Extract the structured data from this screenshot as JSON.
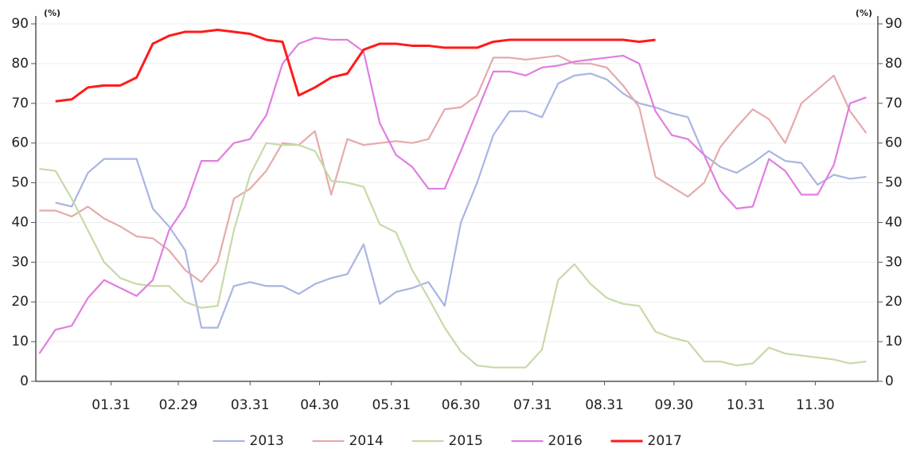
{
  "chart_data": {
    "type": "line",
    "y_unit": "(%)",
    "y2_unit": "(%)",
    "x": [
      0,
      7,
      14,
      21,
      28,
      35,
      42,
      49,
      56,
      63,
      70,
      77,
      84,
      91,
      98,
      105,
      112,
      119,
      126,
      133,
      140,
      147,
      154,
      161,
      168,
      175,
      182,
      189,
      196,
      203,
      210,
      217,
      224,
      231,
      238,
      245,
      252,
      259,
      266,
      273,
      280,
      287,
      294,
      301,
      308,
      315,
      322,
      329,
      336,
      343,
      350,
      357
    ],
    "xlim": [
      -1.5,
      362
    ],
    "xticks": [
      {
        "value": 31,
        "label": "01.31"
      },
      {
        "value": 60,
        "label": "02.29"
      },
      {
        "value": 91,
        "label": "03.31"
      },
      {
        "value": 121,
        "label": "04.30"
      },
      {
        "value": 152,
        "label": "05.31"
      },
      {
        "value": 182,
        "label": "06.30"
      },
      {
        "value": 213,
        "label": "07.31"
      },
      {
        "value": 244,
        "label": "08.31"
      },
      {
        "value": 274,
        "label": "09.30"
      },
      {
        "value": 305,
        "label": "10.31"
      },
      {
        "value": 335,
        "label": "11.30"
      }
    ],
    "ylim": [
      0,
      90
    ],
    "yticks": [
      0,
      10,
      20,
      30,
      40,
      50,
      60,
      70,
      80,
      90
    ],
    "y2lim": [
      0,
      90
    ],
    "y2ticks": [
      0,
      10,
      20,
      30,
      40,
      50,
      60,
      70,
      80,
      90
    ],
    "grid": true,
    "legend": "bottom",
    "series": [
      {
        "name": "2013",
        "color": "#a9b5e2",
        "values": [
          null,
          45,
          44,
          52.5,
          56,
          56,
          56,
          43.5,
          39,
          33,
          13.5,
          13.5,
          24,
          25,
          24,
          24,
          22,
          24.5,
          26,
          27,
          34.5,
          19.5,
          22.5,
          23.5,
          25,
          19,
          40,
          50,
          62,
          68,
          68,
          66.5,
          75,
          77,
          77.5,
          76,
          72.5,
          70,
          69,
          67.5,
          66.5,
          57,
          54,
          52.5,
          55,
          58,
          55.5,
          55,
          49.5,
          52,
          51,
          51.5
        ]
      },
      {
        "name": "2014",
        "color": "#e6aaaa",
        "values": [
          43,
          43,
          41.5,
          44,
          41,
          39,
          36.5,
          36,
          33,
          28,
          25,
          30,
          46,
          48.5,
          53,
          60,
          59.5,
          63,
          47,
          61,
          59.5,
          60,
          60.5,
          60,
          61,
          68.5,
          69,
          72,
          81.5,
          81.5,
          81,
          81.5,
          82,
          80,
          80,
          79,
          74.5,
          69,
          51.5,
          49,
          46.5,
          50,
          59,
          64,
          68.5,
          66,
          60,
          70,
          73.5,
          77,
          68,
          62.5
        ]
      },
      {
        "name": "2015",
        "color": "#c6daa8",
        "values": [
          53.5,
          53,
          46,
          38,
          30,
          26,
          24.5,
          24,
          24,
          20,
          18.5,
          19,
          38,
          52,
          60,
          59.5,
          59.5,
          58,
          50.5,
          50,
          49,
          39.5,
          37.5,
          28,
          21,
          13.5,
          7.5,
          4,
          3.5,
          3.5,
          3.5,
          8,
          25.5,
          29.5,
          24.5,
          21,
          19.5,
          19,
          12.5,
          11,
          10,
          5,
          5,
          4,
          4.5,
          8.5,
          7,
          6.5,
          6,
          5.5,
          4.5,
          5
        ]
      },
      {
        "name": "2016",
        "color": "#e07ee0",
        "values": [
          7,
          13,
          14,
          21,
          25.5,
          23.5,
          21.5,
          25.5,
          38,
          44,
          55.5,
          55.5,
          60,
          61,
          67,
          80,
          85,
          86.5,
          86,
          86,
          83,
          65,
          57,
          54,
          48.5,
          48.5,
          58,
          68,
          78,
          78,
          77,
          79,
          79.5,
          80.5,
          81,
          81.5,
          82,
          80,
          68,
          62,
          61,
          57,
          48,
          43.5,
          44,
          56,
          53,
          47,
          47,
          54.5,
          70,
          71.5
        ]
      },
      {
        "name": "2017",
        "color": "#ff1a1a",
        "values": [
          null,
          70.5,
          71,
          74,
          74.5,
          74.5,
          76.5,
          85,
          87,
          88,
          88,
          88.5,
          88,
          87.5,
          86,
          85.5,
          72,
          74,
          76.5,
          77.5,
          83.5,
          85,
          85,
          84.5,
          84.5,
          84,
          84,
          84,
          85.5,
          86,
          86,
          86,
          86,
          86,
          86,
          86,
          86,
          85.5,
          86,
          null,
          null,
          null,
          null,
          null,
          null,
          null,
          null,
          null,
          null,
          null,
          null,
          null
        ]
      }
    ]
  }
}
